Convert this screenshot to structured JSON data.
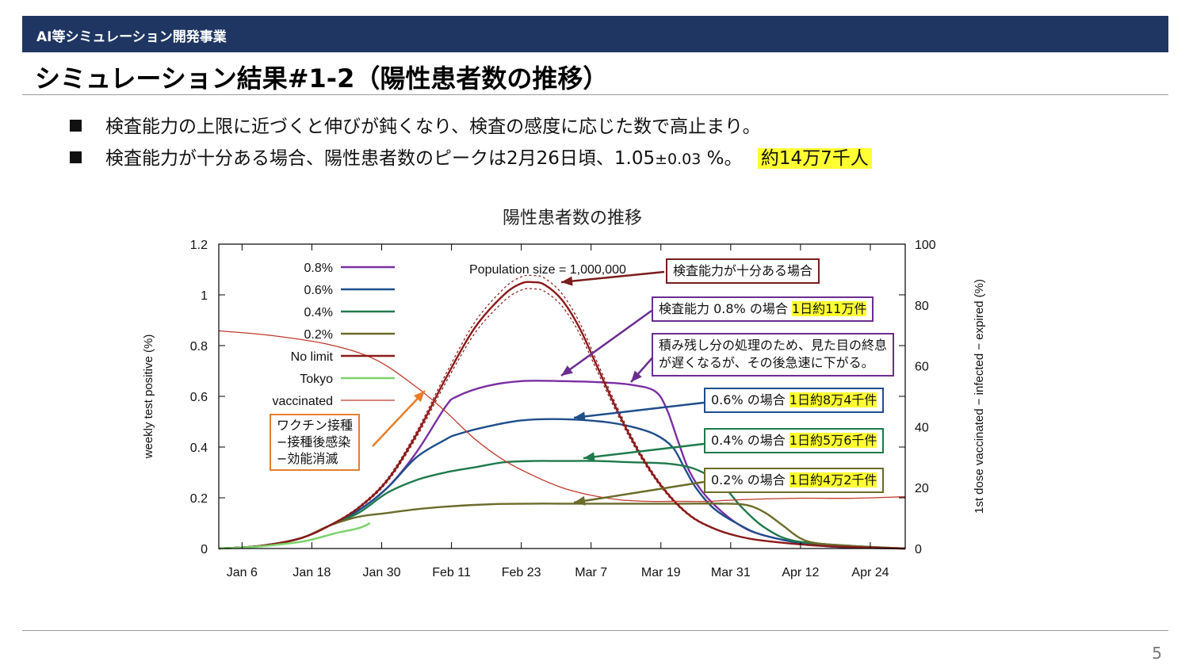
{
  "header": {
    "bar_label": "AI等シミュレーション開発事業",
    "title": "シミュレーション結果#1-2（陽性患者数の推移）"
  },
  "bullets": {
    "b1": "検査能力の上限に近づくと伸びが鈍くなり、検査の感度に応じた数で高止まり。",
    "b2_pre": "検査能力が十分ある場合、陽性患者数のピークは2月26日頃、1.05",
    "b2_small": "±0.03",
    "b2_post": " %。",
    "b2_highlight": "約14万7千人"
  },
  "page_number": "5",
  "annotations": {
    "population": "Population size = 1,000,000",
    "nolimit": "検査能力が十分ある場合",
    "p08_pre": "検査能力 0.8% の場合 ",
    "p08_hl": "1日約11万件",
    "backlog_1": "積み残し分の処理のため、見た目の終息",
    "backlog_2": "が遅くなるが、その後急速に下がる。",
    "p06_pre": "0.6% の場合 ",
    "p06_hl": "1日約8万4千件",
    "p04_pre": "0.4% の場合 ",
    "p04_hl": "1日約5万6千件",
    "p02_pre": "0.2% の場合 ",
    "p02_hl": "1日約4万2千件",
    "vac_1": "ワクチン接種",
    "vac_2": "−接種後感染",
    "vac_3": "−効能消滅"
  },
  "chart_data": {
    "type": "line",
    "title": "陽性患者数の推移",
    "ylabel": "weekly test positive (%)",
    "y2label": "1st dose vaccinated − infected − expired (%)",
    "ylim": [
      0,
      1.2
    ],
    "y2lim": [
      0,
      100
    ],
    "yticks": [
      "0",
      "0.2",
      "0.4",
      "0.6",
      "0.8",
      "1",
      "1.2"
    ],
    "y2ticks": [
      "0",
      "20",
      "40",
      "60",
      "80",
      "100"
    ],
    "xticks": [
      "Jan 6",
      "Jan 18",
      "Jan 30",
      "Feb 11",
      "Feb 23",
      "Mar 7",
      "Mar 19",
      "Mar 31",
      "Apr 12",
      "Apr 24"
    ],
    "xtick_days": [
      5,
      17,
      29,
      41,
      53,
      65,
      77,
      89,
      101,
      113
    ],
    "xlim": [
      1,
      119
    ],
    "grid": false,
    "legend_position": "top-left",
    "series": [
      {
        "name": "0.8%",
        "color": "#7b2fa3",
        "axis": "left",
        "x": [
          1,
          8,
          15,
          20,
          25,
          30,
          35,
          40,
          42,
          47,
          53,
          60,
          67,
          72,
          76,
          78,
          80,
          82,
          85,
          90,
          95,
          105,
          119
        ],
        "y": [
          0,
          0.01,
          0.04,
          0.09,
          0.15,
          0.24,
          0.38,
          0.56,
          0.6,
          0.64,
          0.66,
          0.66,
          0.655,
          0.645,
          0.62,
          0.55,
          0.42,
          0.3,
          0.2,
          0.1,
          0.05,
          0.01,
          0
        ]
      },
      {
        "name": "0.6%",
        "color": "#1f4e8a",
        "axis": "left",
        "x": [
          1,
          8,
          15,
          20,
          25,
          30,
          35,
          40,
          42,
          47,
          53,
          60,
          67,
          72,
          76,
          79,
          81,
          83,
          86,
          90,
          95,
          105,
          119
        ],
        "y": [
          0,
          0.01,
          0.04,
          0.09,
          0.15,
          0.24,
          0.36,
          0.43,
          0.45,
          0.48,
          0.505,
          0.51,
          0.5,
          0.48,
          0.45,
          0.4,
          0.32,
          0.24,
          0.16,
          0.1,
          0.05,
          0.01,
          0
        ]
      },
      {
        "name": "0.4%",
        "color": "#1f7a4a",
        "axis": "left",
        "x": [
          1,
          8,
          15,
          20,
          25,
          30,
          35,
          40,
          45,
          50,
          55,
          60,
          66,
          72,
          78,
          82,
          85,
          88,
          91,
          95,
          100,
          110,
          119
        ],
        "y": [
          0,
          0.01,
          0.04,
          0.09,
          0.14,
          0.22,
          0.27,
          0.3,
          0.32,
          0.34,
          0.345,
          0.345,
          0.345,
          0.34,
          0.335,
          0.32,
          0.29,
          0.24,
          0.16,
          0.08,
          0.03,
          0.01,
          0
        ]
      },
      {
        "name": "0.2%",
        "color": "#6b6b2a",
        "axis": "left",
        "x": [
          1,
          8,
          15,
          20,
          25,
          30,
          35,
          40,
          45,
          50,
          55,
          60,
          70,
          80,
          88,
          92,
          95,
          98,
          101,
          104,
          110,
          119
        ],
        "y": [
          0,
          0.01,
          0.04,
          0.09,
          0.125,
          0.14,
          0.155,
          0.165,
          0.172,
          0.176,
          0.177,
          0.177,
          0.177,
          0.177,
          0.177,
          0.17,
          0.14,
          0.09,
          0.04,
          0.02,
          0.01,
          0
        ]
      },
      {
        "name": "No limit",
        "color": "#8b1a1a",
        "axis": "left",
        "x": [
          1,
          8,
          15,
          20,
          25,
          30,
          35,
          40,
          45,
          50,
          53,
          55,
          57,
          60,
          63,
          66,
          70,
          74,
          78,
          82,
          86,
          90,
          95,
          105,
          119
        ],
        "y": [
          0,
          0.01,
          0.04,
          0.09,
          0.16,
          0.27,
          0.45,
          0.67,
          0.87,
          1.0,
          1.045,
          1.05,
          1.04,
          0.98,
          0.87,
          0.72,
          0.52,
          0.35,
          0.22,
          0.13,
          0.08,
          0.05,
          0.03,
          0.01,
          0
        ]
      },
      {
        "name": "Tokyo",
        "color": "#7cd36b",
        "axis": "left",
        "x": [
          1,
          6,
          11,
          16,
          21,
          25,
          27
        ],
        "y": [
          0,
          0.005,
          0.015,
          0.03,
          0.06,
          0.08,
          0.1
        ]
      },
      {
        "name": "vaccinated",
        "color": "#c0392b",
        "axis": "right",
        "x": [
          1,
          10,
          20,
          28,
          35,
          40,
          45,
          50,
          55,
          60,
          65,
          70,
          75,
          80,
          85,
          90,
          100,
          110,
          119
        ],
        "y": [
          71.5,
          70,
          67,
          62,
          53,
          45,
          36,
          29,
          24,
          20,
          17.5,
          16,
          15.5,
          15.5,
          15.5,
          16,
          16.5,
          16.5,
          17
        ]
      }
    ]
  }
}
